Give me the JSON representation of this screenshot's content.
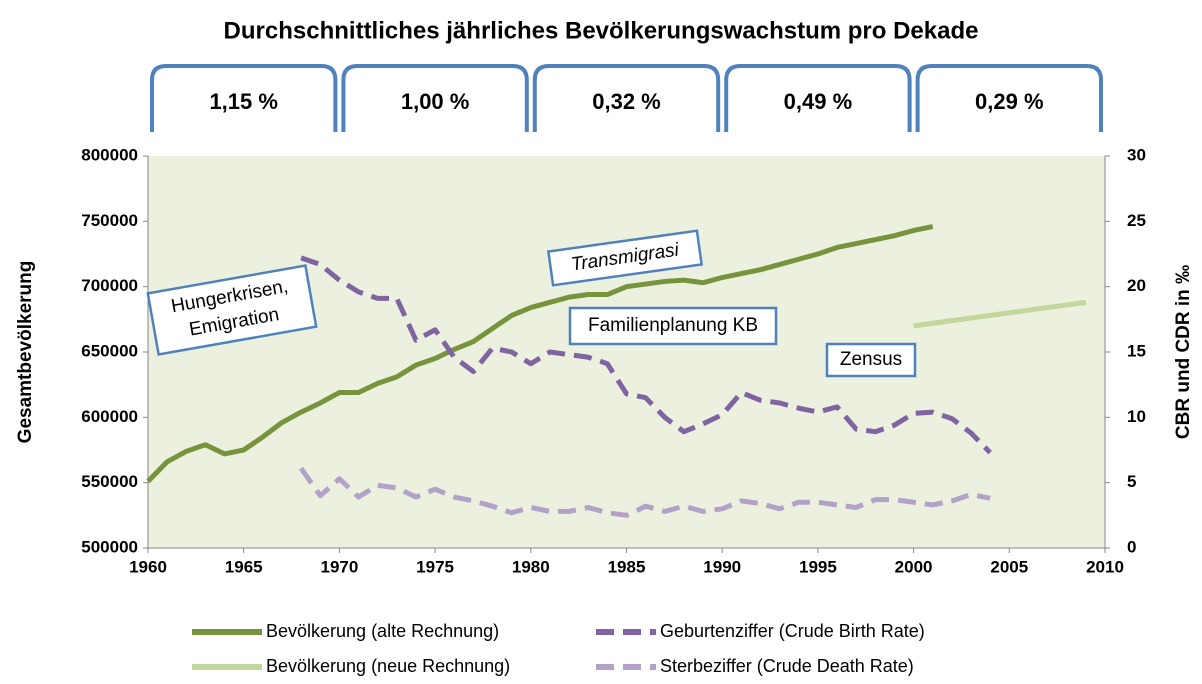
{
  "chart_data": {
    "type": "line",
    "title": "Durchschnittliches jährliches Bevölkerungswachstum pro Dekade",
    "decade_annotations": [
      "1,15 %",
      "1,00 %",
      "0,32 %",
      "0,49 %",
      "0,29 %"
    ],
    "annotations": [
      {
        "lines": [
          "Hungerkrisen,",
          "Emigration"
        ]
      },
      {
        "lines": [
          "Transmigrasi"
        ]
      },
      {
        "lines": [
          "Familienplanung KB"
        ]
      },
      {
        "lines": [
          "Zensus"
        ]
      }
    ],
    "y_label": "Gesamtbevölkerung",
    "y2_label": "CBR und CDR in ‰",
    "plot_background": "#ebf1de",
    "xlim": [
      1960,
      2010
    ],
    "xticks": [
      1960,
      1965,
      1970,
      1975,
      1980,
      1985,
      1990,
      1995,
      2000,
      2005,
      2010
    ],
    "ylim": [
      500000,
      800000
    ],
    "yticks": [
      500000,
      550000,
      600000,
      650000,
      700000,
      750000,
      800000
    ],
    "y2lim": [
      0,
      30
    ],
    "y2ticks": [
      0,
      5,
      10,
      15,
      20,
      25,
      30
    ],
    "series": [
      {
        "name": "Bevölkerung (alte Rechnung)",
        "color": "#77933c",
        "dashed": false,
        "x": [
          1960,
          1961,
          1962,
          1963,
          1964,
          1965,
          1966,
          1967,
          1968,
          1969,
          1970,
          1971,
          1972,
          1973,
          1974,
          1975,
          1976,
          1977,
          1978,
          1979,
          1980,
          1981,
          1982,
          1983,
          1984,
          1985,
          1986,
          1987,
          1988,
          1989,
          1990,
          1991,
          1992,
          1993,
          1994,
          1995,
          1996,
          1997,
          1998,
          1999,
          2000,
          2001
        ],
        "values": [
          551000,
          566000,
          574000,
          579000,
          572000,
          575000,
          585000,
          596000,
          604000,
          611000,
          619000,
          619000,
          626000,
          631000,
          640000,
          645000,
          652000,
          658000,
          668000,
          678000,
          684000,
          688000,
          692000,
          694000,
          694000,
          700000,
          702000,
          704000,
          705000,
          703000,
          707000,
          710000,
          713000,
          717000,
          721000,
          725000,
          730000,
          733000,
          736000,
          739000,
          743000,
          746000
        ]
      },
      {
        "name": "Geburtenziffer (Crude Birth Rate)",
        "color": "#8064a2",
        "dashed": true,
        "axis": "y2",
        "x": [
          1968,
          1969,
          1970,
          1971,
          1972,
          1973,
          1974,
          1975,
          1976,
          1977,
          1978,
          1979,
          1980,
          1981,
          1982,
          1983,
          1984,
          1985,
          1986,
          1987,
          1988,
          1989,
          1990,
          1991,
          1992,
          1993,
          1994,
          1995,
          1996,
          1997,
          1998,
          1999,
          2000,
          2001,
          2002,
          2003,
          2004
        ],
        "values": [
          22.2,
          21.7,
          20.5,
          19.6,
          19.1,
          19.1,
          15.9,
          16.7,
          14.6,
          13.5,
          15.3,
          15.0,
          14.1,
          15.0,
          14.8,
          14.6,
          14.1,
          11.8,
          11.5,
          10.0,
          8.9,
          9.5,
          10.2,
          11.9,
          11.3,
          11.1,
          10.7,
          10.4,
          10.8,
          9.1,
          8.9,
          9.4,
          10.3,
          10.4,
          9.9,
          8.8,
          7.3
        ]
      },
      {
        "name": "Bevölkerung (neue Rechnung)",
        "color": "#c3d69b",
        "dashed": false,
        "x": [
          2000,
          2001,
          2002,
          2003,
          2004,
          2005,
          2006,
          2007,
          2008,
          2009
        ],
        "values": [
          670000,
          672000,
          674000,
          676000,
          678000,
          680000,
          682000,
          684000,
          686000,
          688000
        ]
      },
      {
        "name": "Sterbeziffer (Crude Death Rate)",
        "color": "#b3a2c7",
        "dashed": true,
        "axis": "y2",
        "x": [
          1968,
          1969,
          1970,
          1971,
          1972,
          1973,
          1974,
          1975,
          1976,
          1977,
          1978,
          1979,
          1980,
          1981,
          1982,
          1983,
          1984,
          1985,
          1986,
          1987,
          1988,
          1989,
          1990,
          1991,
          1992,
          1993,
          1994,
          1995,
          1996,
          1997,
          1998,
          1999,
          2000,
          2001,
          2002,
          2003,
          2004
        ],
        "values": [
          6.1,
          4.0,
          5.3,
          3.9,
          4.8,
          4.6,
          3.9,
          4.5,
          3.9,
          3.6,
          3.2,
          2.7,
          3.1,
          2.8,
          2.8,
          3.1,
          2.7,
          2.5,
          3.2,
          2.8,
          3.2,
          2.8,
          3.0,
          3.6,
          3.4,
          3.0,
          3.5,
          3.5,
          3.3,
          3.1,
          3.7,
          3.7,
          3.5,
          3.3,
          3.6,
          4.1,
          3.8
        ]
      }
    ]
  }
}
